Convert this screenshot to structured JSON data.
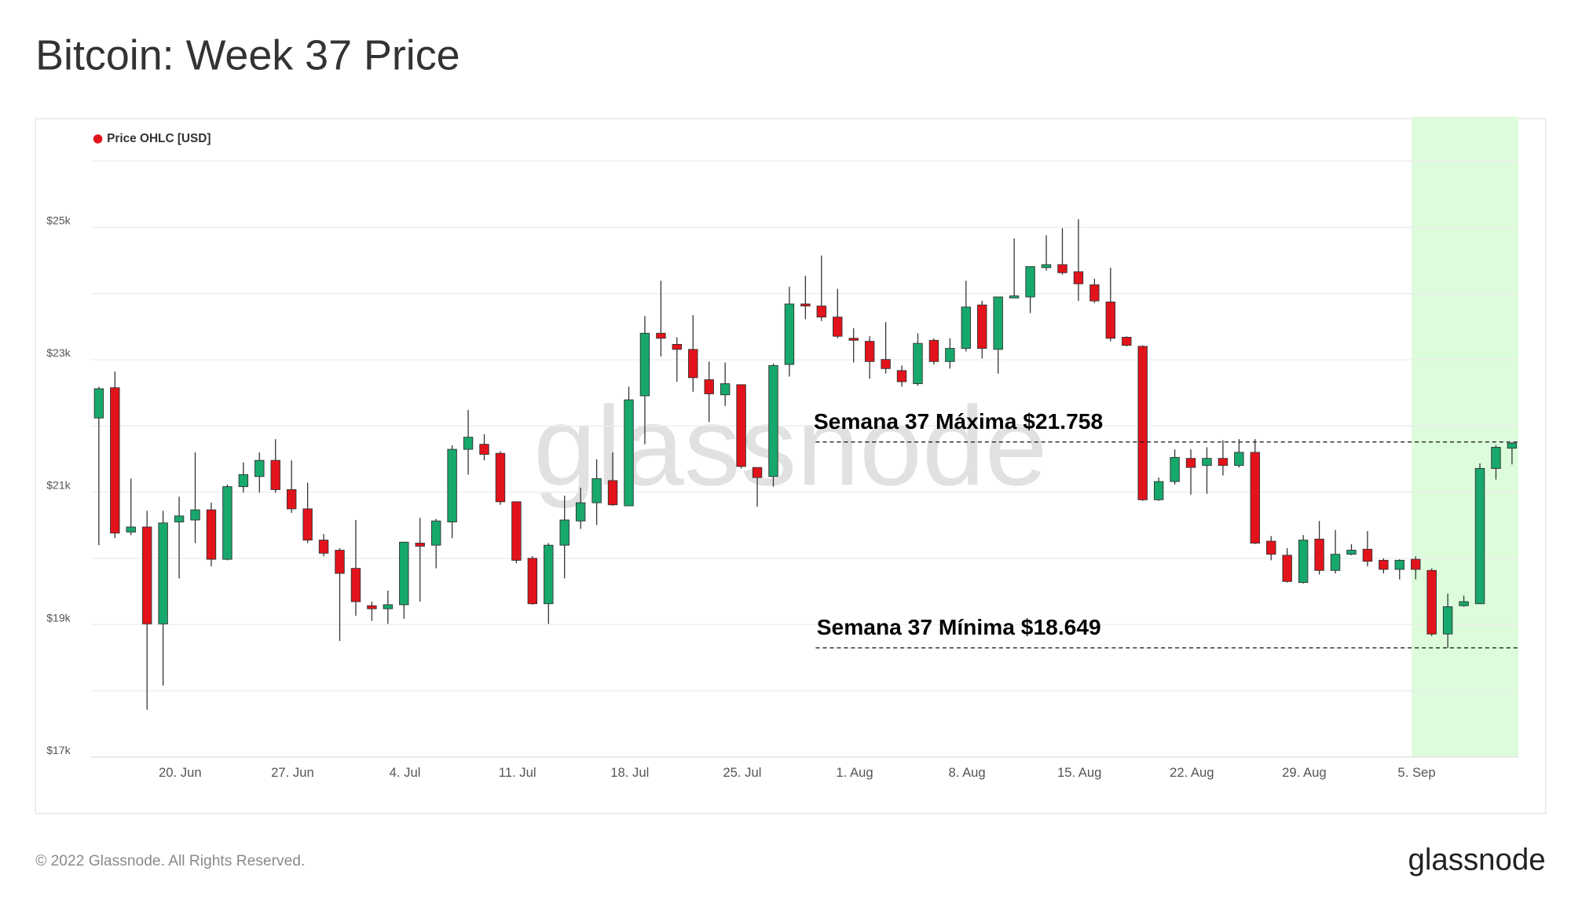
{
  "chart_data": {
    "type": "candlestick",
    "title": "Bitcoin: Week 37 Price",
    "watermark": "glassnode",
    "footer": "© 2022 Glassnode. All Rights Reserved.",
    "logo": "glassnode",
    "categories": [
      null,
      null,
      null,
      null,
      null,
      "20. Jun",
      null,
      null,
      null,
      null,
      null,
      null,
      "27. Jun",
      null,
      null,
      null,
      null,
      null,
      null,
      "4. Jul",
      null,
      null,
      null,
      null,
      null,
      null,
      "11. Jul",
      null,
      null,
      null,
      null,
      null,
      null,
      "18. Jul",
      null,
      null,
      null,
      null,
      null,
      null,
      "25. Jul",
      null,
      null,
      null,
      null,
      null,
      null,
      "1. Aug",
      null,
      null,
      null,
      null,
      null,
      null,
      "8. Aug",
      null,
      null,
      null,
      null,
      null,
      null,
      "15. Aug",
      null,
      null,
      null,
      null,
      null,
      null,
      "22. Aug",
      null,
      null,
      null,
      null,
      null,
      null,
      "29. Aug",
      null,
      null,
      null,
      null,
      null,
      null,
      "5. Sep",
      null,
      null,
      null,
      null,
      null,
      null
    ],
    "series": [
      {
        "name": "Price OHLC [USD]",
        "color": "#e3131b",
        "up_color": "#17a86b",
        "down_color": "#e3131b",
        "open": [
          22120,
          22577,
          20398,
          20474,
          19011,
          20550,
          20580,
          20733,
          19986,
          21083,
          21236,
          21480,
          21038,
          20748,
          20276,
          20123,
          19849,
          19285,
          19239,
          19300,
          20230,
          20199,
          20550,
          21647,
          21723,
          21586,
          20855,
          20001,
          19315,
          20199,
          20565,
          20840,
          21175,
          20794,
          22455,
          23400,
          23232,
          23156,
          22699,
          22470,
          22623,
          21373,
          21236,
          22928,
          23842,
          23811,
          23644,
          23324,
          23278,
          23004,
          22836,
          22638,
          23293,
          22973,
          23171,
          23827,
          23156,
          23933,
          23948,
          24390,
          24436,
          24329,
          24131,
          23872,
          23339,
          23202,
          20885,
          21160,
          21510,
          21403,
          21510,
          21403,
          21601,
          20260,
          20047,
          19636,
          20291,
          19818,
          20062,
          20138,
          19971,
          19834,
          19986,
          19818,
          18858,
          19285,
          19315,
          21358,
          21663
        ],
        "high": [
          22592,
          22820,
          21205,
          20718,
          20718,
          20931,
          21601,
          20840,
          21114,
          21449,
          21601,
          21800,
          21480,
          21144,
          20367,
          20154,
          20580,
          19346,
          19514,
          20245,
          20611,
          20596,
          21708,
          22242,
          21876,
          21617,
          20855,
          20032,
          20230,
          20946,
          21068,
          21495,
          21601,
          22592,
          23659,
          24192,
          23339,
          23674,
          22973,
          22958,
          22623,
          21373,
          22943,
          24101,
          24268,
          24573,
          24070,
          23476,
          23354,
          23567,
          22912,
          23400,
          23324,
          23324,
          24192,
          23888,
          23948,
          24832,
          24406,
          24878,
          24985,
          25122,
          24223,
          24390,
          23354,
          23217,
          21220,
          21647,
          21647,
          21678,
          21784,
          21800,
          21800,
          20337,
          20154,
          20352,
          20565,
          20428,
          20215,
          20413,
          20001,
          19986,
          20032,
          19849,
          19468,
          19437,
          21434,
          21710,
          21758
        ],
        "low": [
          20199,
          20306,
          20352,
          17715,
          18081,
          19697,
          20230,
          19879,
          19971,
          20992,
          20992,
          20992,
          20687,
          20230,
          20032,
          18752,
          19133,
          19056,
          19011,
          19087,
          19346,
          19849,
          20306,
          21266,
          21480,
          20809,
          19925,
          19300,
          19011,
          19697,
          20443,
          20504,
          20794,
          20794,
          21723,
          23049,
          22668,
          22516,
          22059,
          22302,
          21358,
          20779,
          21083,
          22745,
          23613,
          23583,
          23324,
          22958,
          22714,
          22790,
          22592,
          22607,
          22927,
          22866,
          23125,
          23019,
          22790,
          23933,
          23705,
          24345,
          24284,
          23888,
          23857,
          23278,
          23202,
          20870,
          20870,
          21114,
          20961,
          20976,
          21251,
          21373,
          20215,
          19971,
          19636,
          19621,
          19757,
          19773,
          20047,
          19879,
          19773,
          19681,
          19681,
          18828,
          18649,
          19270,
          19315,
          21190,
          21419
        ],
        "close": [
          22562,
          20382,
          20474,
          19011,
          20535,
          20641,
          20733,
          19986,
          21083,
          21266,
          21480,
          21038,
          20748,
          20276,
          20078,
          19773,
          19346,
          19239,
          19300,
          20245,
          20184,
          20565,
          21647,
          21830,
          21571,
          20855,
          19971,
          19315,
          20199,
          20580,
          20840,
          21205,
          20809,
          22394,
          23400,
          23324,
          23156,
          22729,
          22485,
          22638,
          21388,
          21221,
          22912,
          23842,
          23811,
          23644,
          23354,
          23293,
          22973,
          22866,
          22668,
          23247,
          22973,
          23171,
          23796,
          23171,
          23948,
          23964,
          24406,
          24436,
          24314,
          24147,
          23888,
          23324,
          23217,
          20885,
          21160,
          21525,
          21373,
          21510,
          21403,
          21601,
          20230,
          20062,
          19651,
          20276,
          19818,
          20062,
          20123,
          19956,
          19834,
          19971,
          19834,
          18858,
          19270,
          19346,
          21358,
          21678,
          21740
        ]
      }
    ],
    "ylim": [
      17000,
      26000
    ],
    "yticks": [
      {
        "value": 17000,
        "label": "$17k"
      },
      {
        "value": 19000,
        "label": "$19k"
      },
      {
        "value": 21000,
        "label": "$21k"
      },
      {
        "value": 23000,
        "label": "$23k"
      },
      {
        "value": 25000,
        "label": "$25k"
      }
    ],
    "minor_grid": [
      18000,
      20000,
      22000,
      24000,
      26000
    ],
    "grid": true,
    "legend": "top-left",
    "highlight": {
      "start_index": 82,
      "end_index": 88,
      "color": "#dcfcdb"
    },
    "annotations": [
      {
        "text": "Semana 37 Máxima $21.758",
        "value": 21758
      },
      {
        "text": "Semana 37 Mínima $18.649",
        "value": 18649
      }
    ]
  }
}
